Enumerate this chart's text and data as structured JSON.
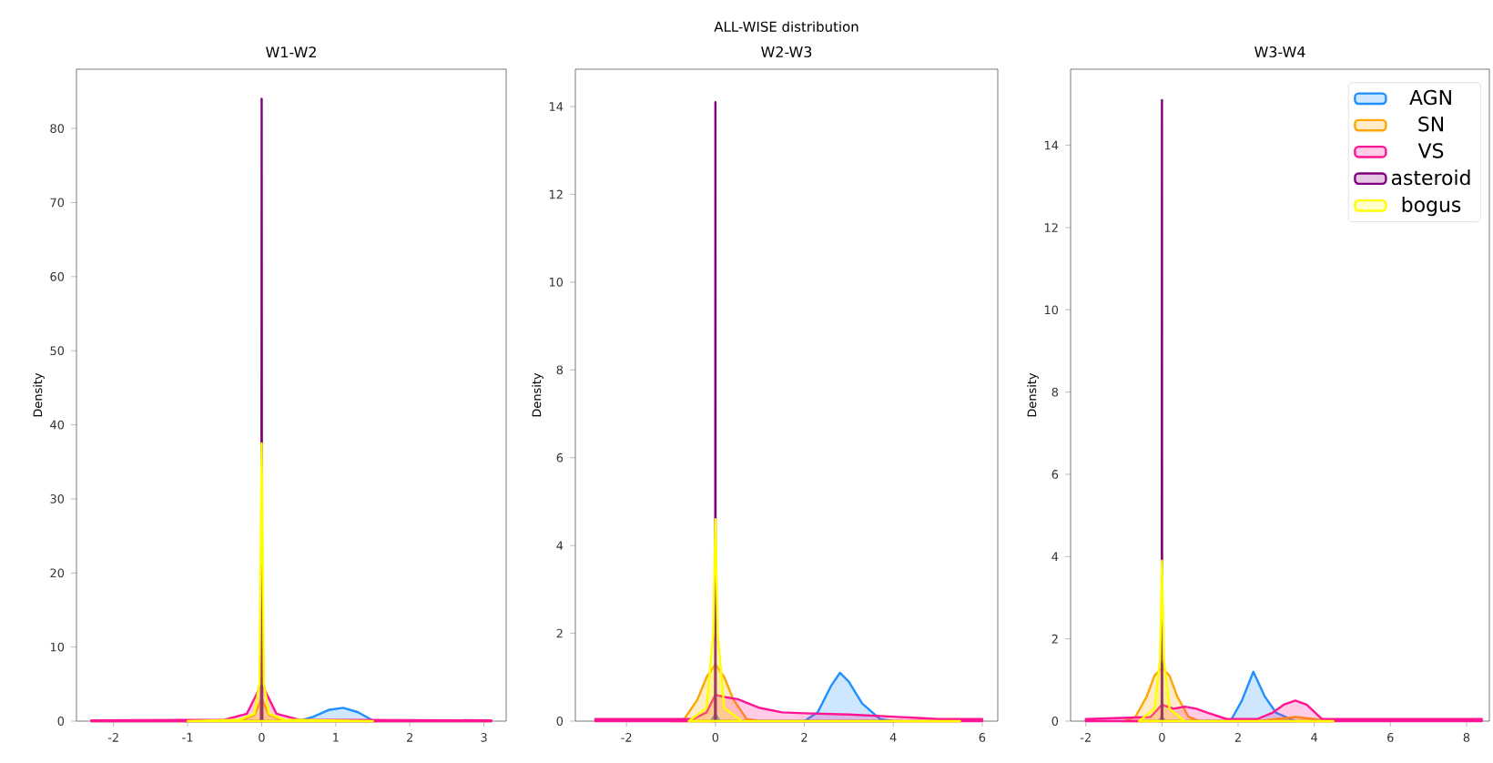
{
  "chart_data": [
    {
      "type": "area",
      "title": "W1-W2",
      "ylabel": "Density",
      "xlim": [
        -2.5,
        3.3
      ],
      "ylim": [
        0,
        88
      ],
      "xticks": [
        -2,
        -1,
        0,
        1,
        2,
        3
      ],
      "yticks": [
        0,
        10,
        20,
        30,
        40,
        50,
        60,
        70,
        80
      ],
      "legend": false,
      "series": [
        {
          "color": "#1e90ff",
          "x": [
            -2.3,
            0.5,
            0.7,
            0.9,
            1.1,
            1.3,
            1.5,
            3.1
          ],
          "values": [
            0,
            0,
            0.6,
            1.5,
            1.8,
            1.2,
            0.1,
            0
          ]
        },
        {
          "color": "#ffa500",
          "x": [
            -2.3,
            -0.3,
            -0.1,
            0,
            0.1,
            0.3,
            3.1
          ],
          "values": [
            0,
            0,
            0.8,
            3,
            0.8,
            0,
            0
          ]
        },
        {
          "color": "#ff1493",
          "x": [
            -2.3,
            -0.5,
            -0.2,
            -0.05,
            0,
            0.05,
            0.2,
            0.5,
            3.1
          ],
          "values": [
            0.1,
            0.2,
            1,
            4,
            5.5,
            4,
            1,
            0.2,
            0.1
          ]
        },
        {
          "color": "#800080",
          "x": [
            -0.01,
            -0.004,
            0,
            0.004,
            0.01
          ],
          "values": [
            0,
            10,
            84,
            10,
            0
          ]
        },
        {
          "color": "#ffff00",
          "x": [
            -1,
            -0.3,
            -0.1,
            -0.03,
            0,
            0.03,
            0.1,
            0.3,
            1.5
          ],
          "values": [
            0,
            0.2,
            1,
            5,
            37.5,
            5,
            1,
            0.2,
            0
          ]
        }
      ]
    },
    {
      "type": "area",
      "title": "W2-W3",
      "ylabel": "Density",
      "annotations": [
        "ALL-WISE distribution"
      ],
      "xlim": [
        -3.15,
        6.35
      ],
      "ylim": [
        0,
        14.85
      ],
      "xticks": [
        -2,
        0,
        2,
        4,
        6
      ],
      "yticks": [
        0,
        2,
        4,
        6,
        8,
        10,
        12,
        14
      ],
      "legend": false,
      "series": [
        {
          "color": "#1e90ff",
          "x": [
            -0.1,
            0,
            0.1,
            2.0,
            2.3,
            2.6,
            2.8,
            3.0,
            3.3,
            3.7,
            4.0
          ],
          "values": [
            0,
            0.15,
            0,
            0,
            0.2,
            0.8,
            1.1,
            0.9,
            0.4,
            0.05,
            0
          ]
        },
        {
          "color": "#ffa500",
          "x": [
            -1,
            -0.7,
            -0.4,
            -0.2,
            0,
            0.2,
            0.4,
            0.7,
            1,
            5.5
          ],
          "values": [
            0,
            0.05,
            0.5,
            1,
            1.3,
            1,
            0.5,
            0.05,
            0,
            0
          ]
        },
        {
          "color": "#ff1493",
          "x": [
            -2.7,
            -0.5,
            -0.2,
            0,
            0.2,
            0.5,
            1,
            1.5,
            2,
            3,
            4,
            5,
            6
          ],
          "values": [
            0.05,
            0.05,
            0.2,
            0.6,
            0.55,
            0.5,
            0.3,
            0.2,
            0.18,
            0.15,
            0.1,
            0.05,
            0.05
          ]
        },
        {
          "color": "#800080",
          "x": [
            -0.01,
            -0.004,
            0,
            0.004,
            0.01
          ],
          "values": [
            0,
            2,
            14.1,
            2,
            0
          ]
        },
        {
          "color": "#ffff00",
          "x": [
            -0.6,
            -0.2,
            -0.05,
            0,
            0.05,
            0.2,
            0.6,
            5.5
          ],
          "values": [
            0,
            0.3,
            2,
            4.6,
            2,
            0.3,
            0,
            0
          ]
        }
      ]
    },
    {
      "type": "area",
      "title": "W3-W4",
      "ylabel": "Density",
      "xlim": [
        -2.4,
        8.6
      ],
      "ylim": [
        0,
        15.85
      ],
      "xticks": [
        -2,
        0,
        2,
        4,
        6,
        8
      ],
      "yticks": [
        0,
        2,
        4,
        6,
        8,
        10,
        12,
        14
      ],
      "legend": "top right",
      "series": [
        {
          "name": "AGN",
          "color": "#1e90ff",
          "x": [
            -0.1,
            0,
            0.1,
            1.8,
            2.1,
            2.4,
            2.7,
            3.0,
            3.5
          ],
          "values": [
            0,
            0.1,
            0,
            0,
            0.5,
            1.2,
            0.6,
            0.2,
            0
          ]
        },
        {
          "name": "SN",
          "color": "#ffa500",
          "x": [
            -1,
            -0.7,
            -0.4,
            -0.2,
            0,
            0.2,
            0.4,
            0.7,
            1,
            2.5,
            3.5,
            4.5
          ],
          "values": [
            0,
            0.1,
            0.6,
            1.1,
            1.3,
            1.1,
            0.6,
            0.1,
            0,
            0,
            0.1,
            0
          ]
        },
        {
          "name": "VS",
          "color": "#ff1493",
          "x": [
            -2,
            -0.3,
            0,
            0.3,
            0.6,
            0.9,
            1.2,
            1.7,
            2.5,
            2.9,
            3.2,
            3.5,
            3.8,
            4.2,
            8.4
          ],
          "values": [
            0.05,
            0.1,
            0.4,
            0.3,
            0.35,
            0.3,
            0.2,
            0.05,
            0.05,
            0.2,
            0.4,
            0.5,
            0.4,
            0.05,
            0.05
          ]
        },
        {
          "name": "asteroid",
          "color": "#800080",
          "x": [
            -0.01,
            -0.004,
            0,
            0.004,
            0.01
          ],
          "values": [
            0,
            2,
            15.1,
            2,
            0
          ]
        },
        {
          "name": "bogus",
          "color": "#ffff00",
          "x": [
            -0.6,
            -0.2,
            -0.05,
            0,
            0.05,
            0.2,
            0.6,
            4.5
          ],
          "values": [
            0,
            0.3,
            1.5,
            3.9,
            1.5,
            0.3,
            0,
            0
          ]
        }
      ]
    }
  ]
}
